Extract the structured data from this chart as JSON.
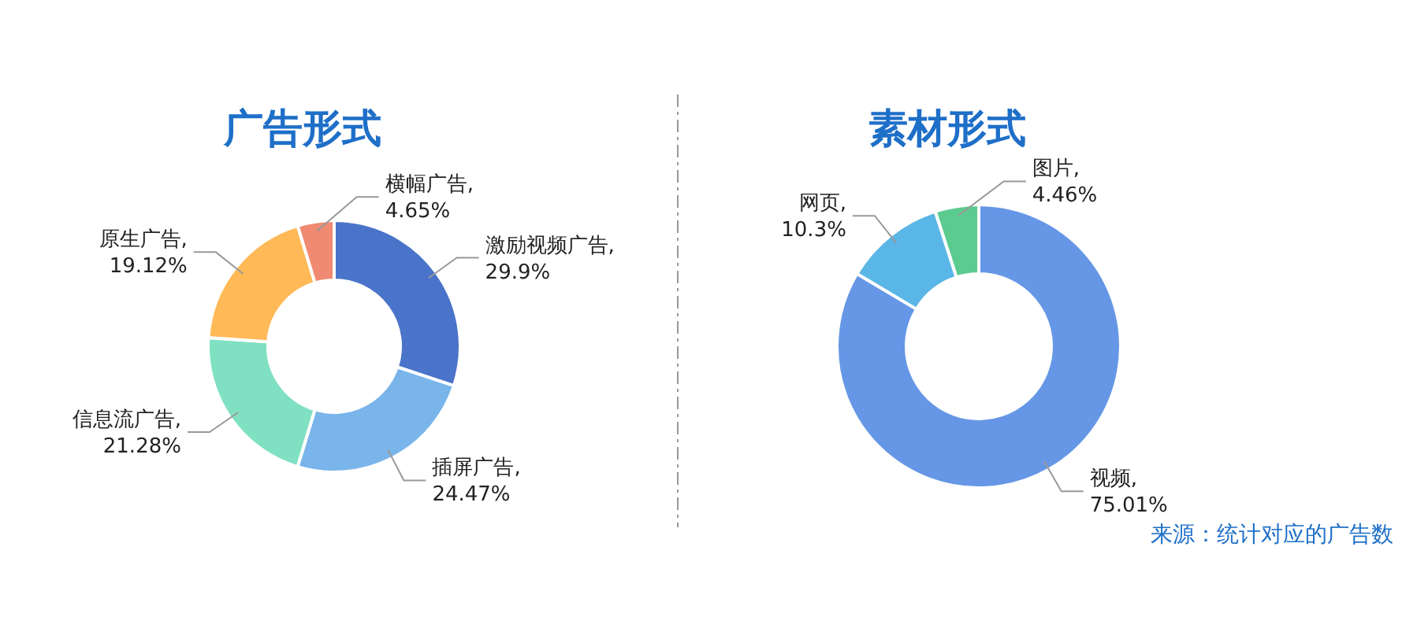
{
  "chart_data": [
    {
      "type": "donut",
      "title": "广告形式",
      "categories": [
        "激励视频广告",
        "插屏广告",
        "信息流广告",
        "原生广告",
        "横幅广告"
      ],
      "values": [
        29.9,
        24.47,
        21.28,
        19.12,
        4.65
      ],
      "colors": [
        "#4a74c9",
        "#79b5ea",
        "#80e1c2",
        "#ffb957",
        "#f08a72"
      ],
      "value_labels": [
        ",\n29.9%",
        ",\n24.47%",
        ",\n21.28%",
        ",\n19.12%",
        ",\n4.65%"
      ]
    },
    {
      "type": "donut",
      "title": "素材形式",
      "categories": [
        "视频",
        "网页",
        "图片"
      ],
      "values": [
        75.01,
        10.3,
        4.46
      ],
      "colors": [
        "#6697e6",
        "#5ab6e6",
        "#5ccb90"
      ],
      "value_labels": [
        ",\n75.01%",
        ",\n10.3%",
        ",\n4.46%"
      ],
      "annotations": [
        "来源：统计对应的广告数"
      ]
    }
  ]
}
